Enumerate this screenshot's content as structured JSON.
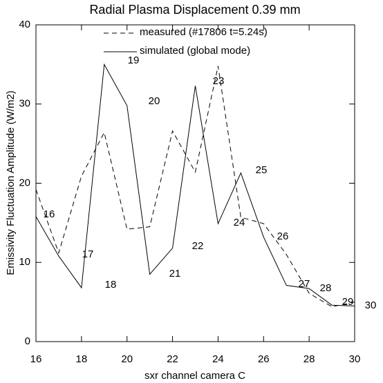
{
  "chart_data": {
    "type": "line",
    "title": "Radial Plasma Displacement  0.39 mm",
    "x_label": "sxr channel camera C",
    "y_label": "Emissivity Fluctuation Amplitude (W/m2)",
    "x": [
      16,
      17,
      18,
      19,
      20,
      21,
      22,
      23,
      24,
      25,
      26,
      27,
      28,
      29,
      30
    ],
    "series": [
      {
        "name": "measured (#17806 t=5.24s)",
        "color": "#000000",
        "line_style": "dashed",
        "values": [
          19.2,
          11.2,
          20.9,
          26.4,
          14.2,
          14.5,
          26.6,
          21.4,
          34.8,
          15.7,
          14.9,
          11.0,
          6.1,
          4.4,
          5.0
        ]
      },
      {
        "name": "simulated (global mode)",
        "color": "#000000",
        "line_style": "solid",
        "values": [
          15.8,
          10.8,
          6.8,
          35.0,
          29.8,
          8.5,
          11.8,
          32.3,
          14.9,
          21.3,
          13.2,
          7.1,
          6.7,
          4.6,
          4.5
        ]
      }
    ],
    "point_labels": [
      "16",
      "17",
      "18",
      "19",
      "20",
      "21",
      "22",
      "23",
      "24",
      "25",
      "26",
      "27",
      "28",
      "29",
      "30"
    ],
    "xlim": [
      16,
      30
    ],
    "xticks": [
      16,
      18,
      20,
      22,
      24,
      26,
      28,
      30
    ],
    "ylim": [
      0,
      40
    ],
    "yticks": [
      0,
      10,
      20,
      30,
      40
    ]
  }
}
